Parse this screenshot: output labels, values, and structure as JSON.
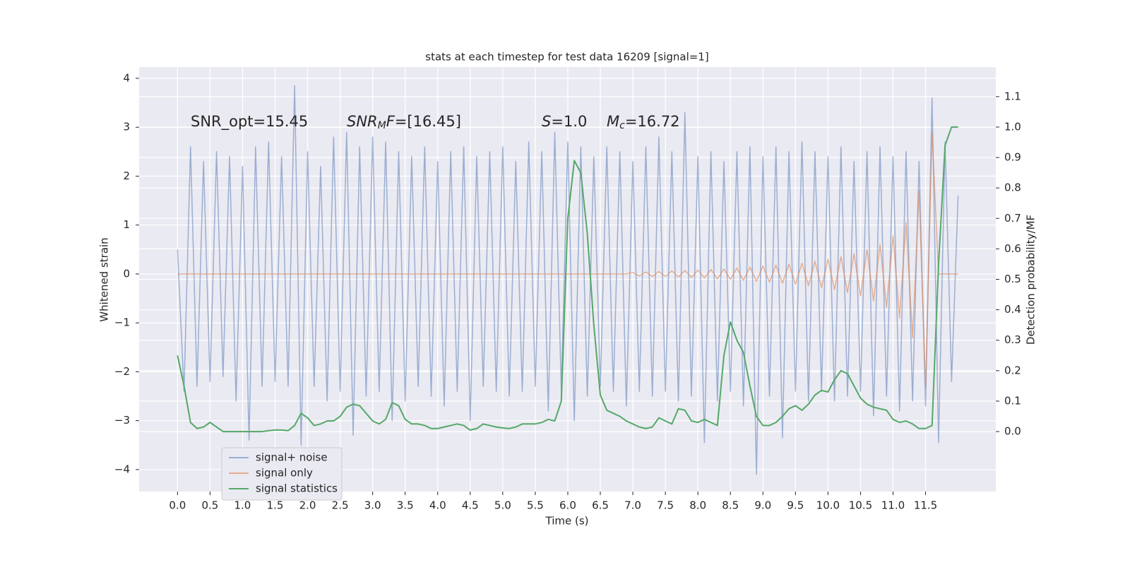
{
  "chart_data": {
    "type": "line",
    "title": "stats at each timestep for test data 16209 [signal=1]",
    "x_label": "Time (s)",
    "y_label": "Whitened strain",
    "y2_label": "Detection probability/MF",
    "grid": true,
    "legend": "lower left",
    "background": "#eaeaf2",
    "xlim": [
      -0.59,
      12.58
    ],
    "ylim": [
      -4.45,
      4.23
    ],
    "y2lim": [
      -0.197,
      1.197
    ],
    "xticks": [
      {
        "value": 0,
        "label": "0.0"
      },
      0.5,
      {
        "value": 1,
        "label": "1.0"
      },
      1.5,
      {
        "value": 2,
        "label": "2.0"
      },
      2.5,
      {
        "value": 3,
        "label": "3.0"
      },
      3.5,
      {
        "value": 4,
        "label": "4.0"
      },
      4.5,
      {
        "value": 5,
        "label": "5.0"
      },
      5.5,
      {
        "value": 6,
        "label": "6.0"
      },
      6.5,
      {
        "value": 7,
        "label": "7.0"
      },
      7.5,
      {
        "value": 8,
        "label": "8.0"
      },
      8.5,
      {
        "value": 9,
        "label": "9.0"
      },
      9.5,
      {
        "value": 10,
        "label": "10.0"
      },
      10.5,
      {
        "value": 11,
        "label": "11.0"
      },
      11.5
    ],
    "yticks": [
      {
        "value": -4,
        "label": "−4"
      },
      {
        "value": -3,
        "label": "−3"
      },
      {
        "value": -2,
        "label": "−2"
      },
      {
        "value": -1,
        "label": "−1"
      },
      0,
      1,
      2,
      3,
      4
    ],
    "y2ticks": [
      {
        "value": 0,
        "label": "0.0"
      },
      0.1,
      0.2,
      0.3,
      0.4,
      0.5,
      0.6,
      0.7,
      0.8,
      0.9,
      {
        "value": 1,
        "label": "1.0"
      },
      1.1
    ],
    "annotations": [
      {
        "parts": [
          {
            "text": "SNR_opt=15.45"
          }
        ]
      },
      {
        "parts": [
          {
            "text": "SNR",
            "style": "italic"
          },
          {
            "text": "M",
            "style": "sub"
          },
          {
            "text": "F",
            "style": "italic"
          },
          {
            "text": "=[16.45]"
          }
        ]
      },
      {
        "parts": [
          {
            "text": "S",
            "style": "italic"
          },
          {
            "text": "=1.0"
          }
        ]
      },
      {
        "parts": [
          {
            "text": "M",
            "style": "italic"
          },
          {
            "text": "c",
            "style": "sub"
          },
          {
            "text": "=16.72"
          }
        ]
      }
    ],
    "x": [
      0,
      0.1,
      0.2,
      0.3,
      0.4,
      0.5,
      0.6,
      0.7,
      0.8,
      0.9,
      1,
      1.1,
      1.2,
      1.3,
      1.4,
      1.5,
      1.6,
      1.7,
      1.8,
      1.9,
      2,
      2.1,
      2.2,
      2.3,
      2.4,
      2.5,
      2.6,
      2.7,
      2.8,
      2.9,
      3,
      3.1,
      3.2,
      3.3,
      3.4,
      3.5,
      3.6,
      3.7,
      3.8,
      3.9,
      4,
      4.1,
      4.2,
      4.3,
      4.4,
      4.5,
      4.6,
      4.7,
      4.8,
      4.9,
      5,
      5.1,
      5.2,
      5.3,
      5.4,
      5.5,
      5.6,
      5.7,
      5.8,
      5.9,
      6,
      6.1,
      6.2,
      6.3,
      6.4,
      6.5,
      6.6,
      6.7,
      6.8,
      6.9,
      7,
      7.1,
      7.2,
      7.3,
      7.4,
      7.5,
      7.6,
      7.7,
      7.8,
      7.9,
      8,
      8.1,
      8.2,
      8.3,
      8.4,
      8.5,
      8.6,
      8.7,
      8.8,
      8.9,
      9,
      9.1,
      9.2,
      9.3,
      9.4,
      9.5,
      9.6,
      9.7,
      9.8,
      9.9,
      10,
      10.1,
      10.2,
      10.3,
      10.4,
      10.5,
      10.6,
      10.7,
      10.8,
      10.9,
      11,
      11.1,
      11.2,
      11.3,
      11.4,
      11.5,
      11.6,
      11.7,
      11.8,
      11.9,
      12
    ],
    "series": [
      {
        "name": "signal+ noise",
        "color": "#4c72b0",
        "opacity": 0.5,
        "values": [
          0.5,
          -2.4,
          2.6,
          -2.3,
          2.3,
          -2.2,
          2.5,
          -2.1,
          2.4,
          -2.6,
          2.2,
          -3.4,
          2.6,
          -2.3,
          2.7,
          -2.2,
          2.4,
          -2.3,
          3.85,
          -3.5,
          2.5,
          -2.3,
          2.2,
          -2.6,
          2.8,
          -2.4,
          2.9,
          -3.3,
          2.6,
          -2.5,
          2.8,
          -2.4,
          2.7,
          -3.0,
          2.5,
          -2.6,
          2.4,
          -2.3,
          2.6,
          -2.5,
          2.3,
          -2.7,
          2.5,
          -2.4,
          2.6,
          -3.0,
          2.4,
          -2.3,
          2.5,
          -2.4,
          2.6,
          -2.5,
          2.3,
          -2.4,
          2.7,
          -2.3,
          2.5,
          -2.8,
          2.9,
          -2.4,
          2.7,
          -3.0,
          2.6,
          -2.5,
          2.4,
          -2.3,
          2.6,
          -2.4,
          2.5,
          -2.7,
          2.3,
          -2.4,
          2.6,
          -2.5,
          2.8,
          -2.4,
          2.5,
          -2.6,
          3.3,
          -2.5,
          2.4,
          -3.45,
          2.5,
          -2.6,
          2.3,
          -2.4,
          2.5,
          -2.7,
          2.6,
          -4.1,
          2.4,
          -2.5,
          2.6,
          -3.35,
          2.5,
          -2.4,
          2.7,
          -2.6,
          2.5,
          -2.4,
          2.4,
          -2.6,
          2.6,
          -2.5,
          2.3,
          -2.4,
          2.5,
          -2.9,
          2.6,
          -2.5,
          2.4,
          -2.8,
          2.5,
          -2.6,
          2.3,
          -2.7,
          3.6,
          -3.45,
          2.7,
          -2.2,
          1.6
        ]
      },
      {
        "name": "signal only",
        "color": "#dd8452",
        "opacity": 0.6,
        "values": [
          0,
          0,
          0,
          0,
          0,
          0,
          0,
          0,
          0,
          0,
          0,
          0,
          0,
          0,
          0,
          0,
          0,
          0,
          0,
          0,
          0,
          0,
          0,
          0,
          0,
          0,
          0,
          0,
          0,
          0,
          0,
          0,
          0,
          0,
          0,
          0,
          0,
          0,
          0,
          0,
          0,
          0,
          0,
          0,
          0,
          0,
          0,
          0,
          0,
          0,
          0,
          0,
          0,
          0,
          0,
          0,
          0,
          0,
          0,
          0,
          0,
          0,
          0,
          0,
          0,
          0,
          0,
          0,
          0,
          0,
          0.03,
          -0.04,
          0.04,
          -0.05,
          0.05,
          -0.05,
          0.06,
          -0.06,
          0.07,
          -0.07,
          0.08,
          -0.08,
          0.09,
          -0.1,
          0.1,
          -0.11,
          0.12,
          -0.13,
          0.14,
          -0.15,
          0.16,
          -0.17,
          0.18,
          -0.19,
          0.2,
          -0.21,
          0.22,
          -0.24,
          0.26,
          -0.28,
          0.3,
          -0.32,
          0.35,
          -0.38,
          0.41,
          -0.45,
          0.5,
          -0.55,
          0.6,
          -0.68,
          0.78,
          -0.9,
          1.05,
          -1.3,
          1.7,
          -2.3,
          2.9,
          0,
          0,
          0,
          0
        ]
      },
      {
        "name": "signal statistics",
        "color": "#55a868",
        "opacity": 1,
        "axis": "y2",
        "values": [
          0.25,
          0.15,
          0.03,
          0.01,
          0.015,
          0.03,
          0.015,
          0.0,
          0.0,
          0.0,
          0.0,
          0.0,
          0.0,
          0.0,
          0.003,
          0.005,
          0.005,
          0.003,
          0.02,
          0.06,
          0.045,
          0.02,
          0.025,
          0.035,
          0.035,
          0.05,
          0.08,
          0.09,
          0.085,
          0.06,
          0.035,
          0.025,
          0.04,
          0.095,
          0.085,
          0.04,
          0.025,
          0.025,
          0.02,
          0.01,
          0.01,
          0.015,
          0.02,
          0.025,
          0.02,
          0.005,
          0.01,
          0.025,
          0.02,
          0.015,
          0.012,
          0.01,
          0.015,
          0.025,
          0.025,
          0.025,
          0.03,
          0.04,
          0.035,
          0.1,
          0.7,
          0.89,
          0.85,
          0.65,
          0.35,
          0.12,
          0.07,
          0.06,
          0.05,
          0.035,
          0.025,
          0.015,
          0.01,
          0.015,
          0.045,
          0.035,
          0.025,
          0.075,
          0.07,
          0.035,
          0.03,
          0.04,
          0.03,
          0.02,
          0.25,
          0.36,
          0.3,
          0.26,
          0.15,
          0.05,
          0.02,
          0.02,
          0.03,
          0.05,
          0.075,
          0.085,
          0.07,
          0.09,
          0.12,
          0.135,
          0.13,
          0.17,
          0.2,
          0.19,
          0.15,
          0.11,
          0.09,
          0.08,
          0.075,
          0.07,
          0.04,
          0.03,
          0.035,
          0.025,
          0.01,
          0.01,
          0.02,
          0.55,
          0.94,
          1.0,
          1.0
        ]
      }
    ]
  }
}
